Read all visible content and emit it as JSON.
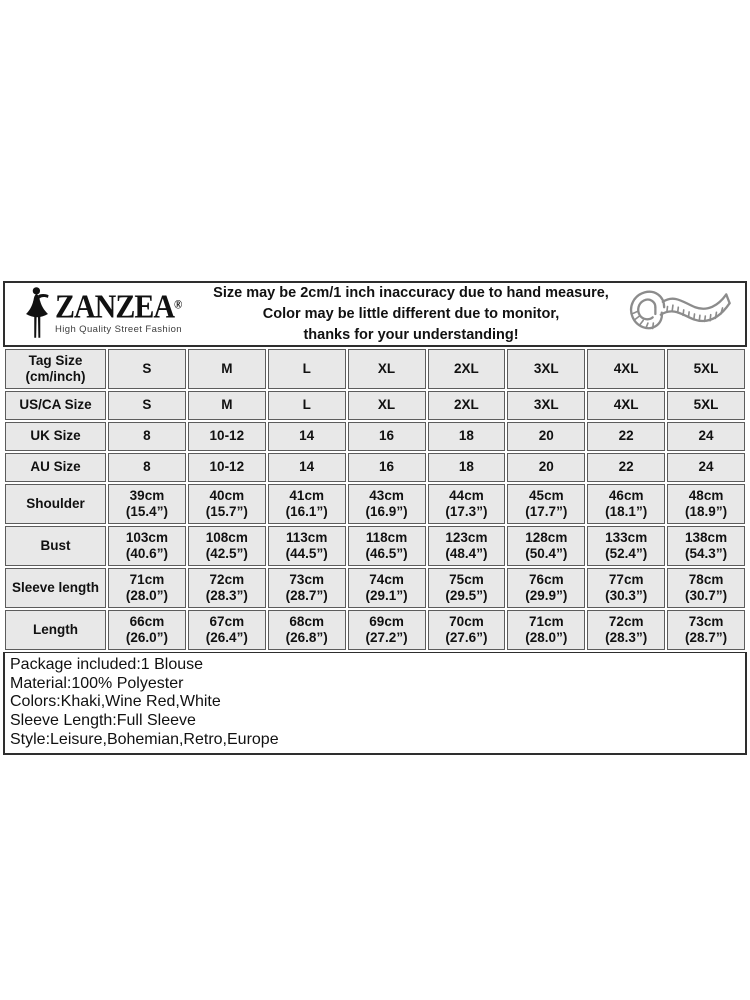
{
  "brand": {
    "name": "ZANZEA",
    "registered_mark": "®",
    "tagline": "High Quality Street Fashion"
  },
  "disclaimer": {
    "lines": [
      "Size may be 2cm/1 inch inaccuracy due to hand measure,",
      "Color may be little different due to monitor,",
      "thanks for your understanding!"
    ]
  },
  "icons": {
    "logo_figure": "woman-silhouette-icon",
    "measuring_tape": "tape-measure-icon"
  },
  "size_chart": {
    "rows": [
      {
        "label": [
          "Tag Size",
          "(cm/inch)"
        ],
        "cells": [
          [
            "S"
          ],
          [
            "M"
          ],
          [
            "L"
          ],
          [
            "XL"
          ],
          [
            "2XL"
          ],
          [
            "3XL"
          ],
          [
            "4XL"
          ],
          [
            "5XL"
          ]
        ]
      },
      {
        "label": [
          "US/CA Size"
        ],
        "cells": [
          [
            "S"
          ],
          [
            "M"
          ],
          [
            "L"
          ],
          [
            "XL"
          ],
          [
            "2XL"
          ],
          [
            "3XL"
          ],
          [
            "4XL"
          ],
          [
            "5XL"
          ]
        ]
      },
      {
        "label": [
          "UK Size"
        ],
        "cells": [
          [
            "8"
          ],
          [
            "10-12"
          ],
          [
            "14"
          ],
          [
            "16"
          ],
          [
            "18"
          ],
          [
            "20"
          ],
          [
            "22"
          ],
          [
            "24"
          ]
        ]
      },
      {
        "label": [
          "AU Size"
        ],
        "cells": [
          [
            "8"
          ],
          [
            "10-12"
          ],
          [
            "14"
          ],
          [
            "16"
          ],
          [
            "18"
          ],
          [
            "20"
          ],
          [
            "22"
          ],
          [
            "24"
          ]
        ]
      },
      {
        "label": [
          "Shoulder"
        ],
        "cells": [
          [
            "39cm",
            "(15.4”)"
          ],
          [
            "40cm",
            "(15.7”)"
          ],
          [
            "41cm",
            "(16.1”)"
          ],
          [
            "43cm",
            "(16.9”)"
          ],
          [
            "44cm",
            "(17.3”)"
          ],
          [
            "45cm",
            "(17.7”)"
          ],
          [
            "46cm",
            "(18.1”)"
          ],
          [
            "48cm",
            "(18.9”)"
          ]
        ]
      },
      {
        "label": [
          "Bust"
        ],
        "cells": [
          [
            "103cm",
            "(40.6”)"
          ],
          [
            "108cm",
            "(42.5”)"
          ],
          [
            "113cm",
            "(44.5”)"
          ],
          [
            "118cm",
            "(46.5”)"
          ],
          [
            "123cm",
            "(48.4”)"
          ],
          [
            "128cm",
            "(50.4”)"
          ],
          [
            "133cm",
            "(52.4”)"
          ],
          [
            "138cm",
            "(54.3”)"
          ]
        ]
      },
      {
        "label": [
          "Sleeve length"
        ],
        "cells": [
          [
            "71cm",
            "(28.0”)"
          ],
          [
            "72cm",
            "(28.3”)"
          ],
          [
            "73cm",
            "(28.7”)"
          ],
          [
            "74cm",
            "(29.1”)"
          ],
          [
            "75cm",
            "(29.5”)"
          ],
          [
            "76cm",
            "(29.9”)"
          ],
          [
            "77cm",
            "(30.3”)"
          ],
          [
            "78cm",
            "(30.7”)"
          ]
        ]
      },
      {
        "label": [
          "Length"
        ],
        "cells": [
          [
            "66cm",
            "(26.0”)"
          ],
          [
            "67cm",
            "(26.4”)"
          ],
          [
            "68cm",
            "(26.8”)"
          ],
          [
            "69cm",
            "(27.2”)"
          ],
          [
            "70cm",
            "(27.6”)"
          ],
          [
            "71cm",
            "(28.0”)"
          ],
          [
            "72cm",
            "(28.3”)"
          ],
          [
            "73cm",
            "(28.7”)"
          ]
        ]
      }
    ]
  },
  "product_info": {
    "lines": [
      "Package included:1 Blouse",
      "Material:100% Polyester",
      "Colors:Khaki,Wine Red,White",
      "Sleeve Length:Full Sleeve",
      "Style:Leisure,Bohemian,Retro,Europe"
    ]
  },
  "colors": {
    "table_cell_bg": "#e8e8e8",
    "table_border": "#5c5c5c",
    "outer_border": "#2e2e2e",
    "text": "#111111",
    "tape_outline": "#8c8c8c",
    "tagline_text": "#3d3d3d"
  }
}
